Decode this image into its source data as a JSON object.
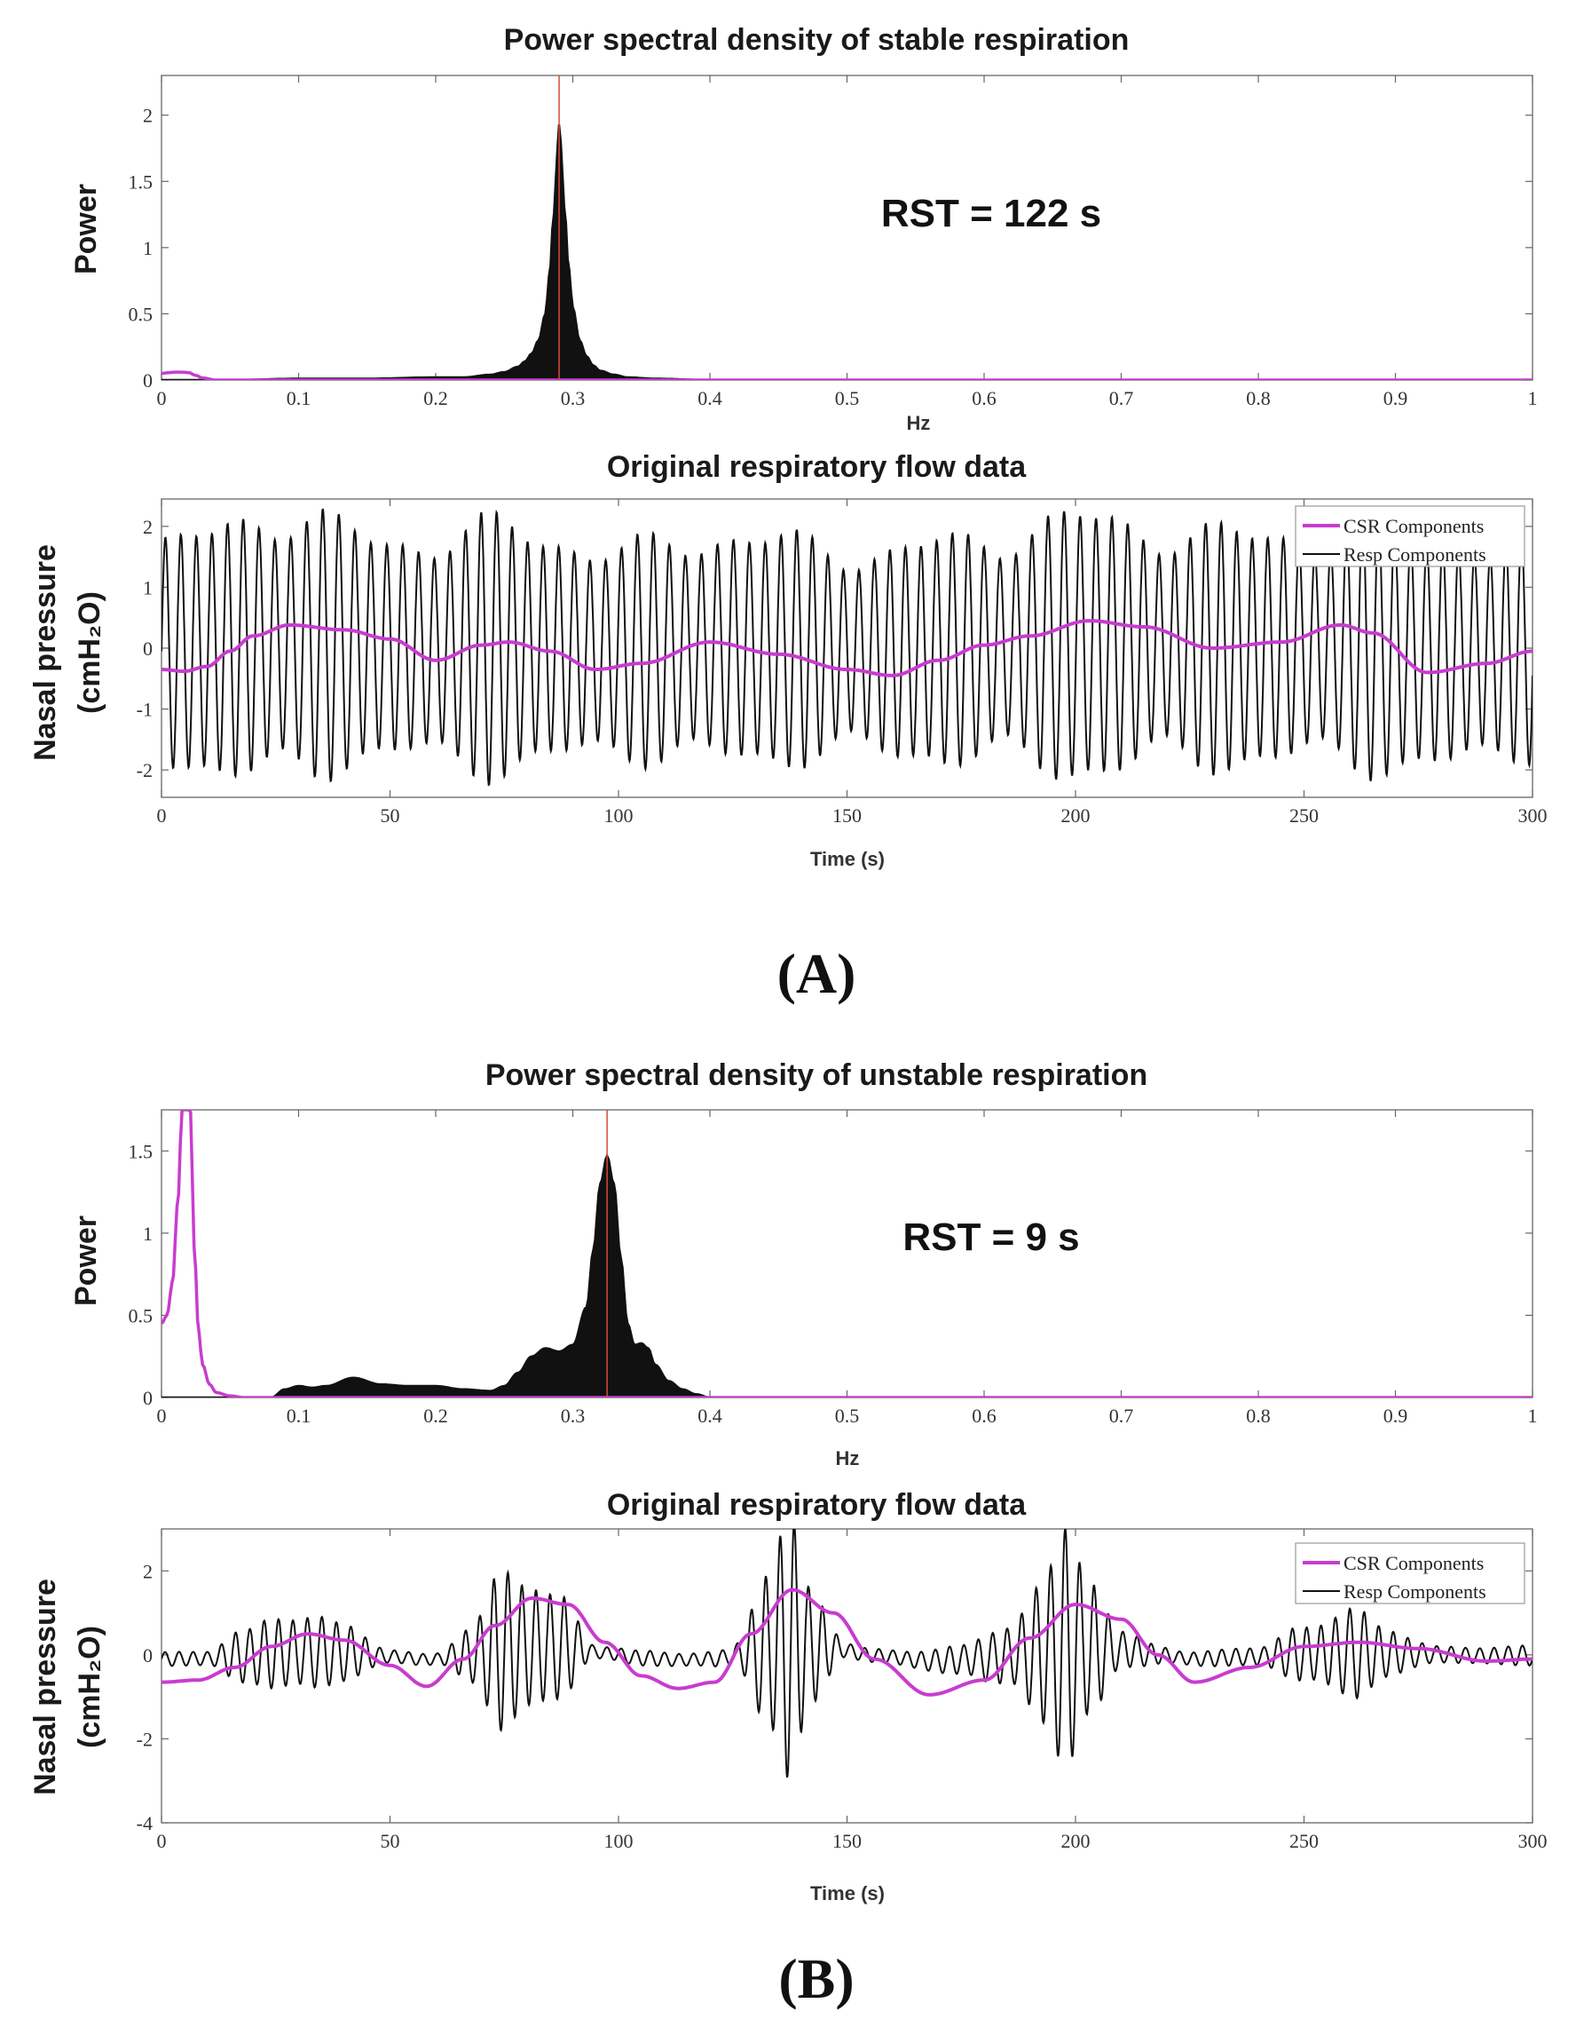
{
  "colors": {
    "csr": "#c83ccf",
    "resp": "#111111",
    "peak_marker": "#d94a3a",
    "axis": "#666666"
  },
  "panel_labels": [
    "(A)",
    "(B)"
  ],
  "chart_data": [
    {
      "id": "A_psd",
      "type": "area",
      "title": "Power spectral density of stable respiration",
      "xlabel": "Hz",
      "ylabel": "Power",
      "xlim": [
        0,
        1
      ],
      "ylim": [
        0,
        2.3
      ],
      "xticks": [
        0,
        0.1,
        0.2,
        0.3,
        0.4,
        0.5,
        0.6,
        0.7,
        0.8,
        0.9,
        1
      ],
      "xtick_labels": [
        "0",
        "0.1",
        "0.2",
        "0.3",
        "0.4",
        "0.5",
        "0.6",
        "0.7",
        "0.8",
        "0.9",
        "1"
      ],
      "yticks": [
        0,
        0.5,
        1,
        1.5,
        2
      ],
      "ytick_labels": [
        "0",
        "0.5",
        "1",
        "1.5",
        "2"
      ],
      "annotation": "RST = 122 s",
      "peak_hz": 0.29,
      "series": [
        {
          "name": "CSR Components",
          "x": [
            0,
            0.005,
            0.01,
            0.015,
            0.02,
            0.025,
            0.03,
            0.04,
            0.06,
            1.0
          ],
          "y": [
            0.05,
            0.055,
            0.06,
            0.06,
            0.055,
            0.035,
            0.015,
            0.0,
            0.0,
            0.0
          ]
        },
        {
          "name": "Resp Components",
          "x": [
            0,
            0.05,
            0.1,
            0.15,
            0.2,
            0.22,
            0.24,
            0.25,
            0.26,
            0.265,
            0.27,
            0.275,
            0.28,
            0.283,
            0.286,
            0.289,
            0.29,
            0.291,
            0.294,
            0.297,
            0.3,
            0.305,
            0.31,
            0.315,
            0.32,
            0.33,
            0.34,
            0.36,
            0.4,
            0.5,
            0.6,
            0.7,
            0.8,
            0.9,
            1.0
          ],
          "y": [
            0.0,
            0.0,
            0.01,
            0.01,
            0.02,
            0.02,
            0.04,
            0.06,
            0.1,
            0.14,
            0.2,
            0.3,
            0.5,
            0.8,
            1.25,
            1.75,
            1.93,
            1.8,
            1.3,
            0.85,
            0.55,
            0.3,
            0.18,
            0.11,
            0.07,
            0.04,
            0.02,
            0.01,
            0.0,
            0.0,
            0.0,
            0.0,
            0.0,
            0.0,
            0.0
          ]
        }
      ]
    },
    {
      "id": "A_flow",
      "type": "line",
      "title": "Original respiratory flow data",
      "xlabel": "Time (s)",
      "ylabel": "Nasal pressure",
      "ylabel2": "(cmH₂O)",
      "xlim": [
        0,
        300
      ],
      "ylim": [
        -2.45,
        2.45
      ],
      "xticks": [
        0,
        50,
        100,
        150,
        200,
        250,
        300
      ],
      "xtick_labels": [
        "0",
        "50",
        "100",
        "150",
        "200",
        "250",
        "300"
      ],
      "yticks": [
        -2,
        -1,
        0,
        1,
        2
      ],
      "ytick_labels": [
        "-2",
        "-1",
        "0",
        "1",
        "2"
      ],
      "legend": [
        "CSR Components",
        "Resp Components"
      ],
      "resp_freq_hz": 0.29,
      "resp_envelope": {
        "t": [
          0,
          25,
          50,
          75,
          100,
          125,
          150,
          175,
          200,
          225,
          250,
          275,
          300
        ],
        "amp": [
          1.7,
          2.1,
          1.7,
          1.9,
          1.6,
          1.8,
          1.6,
          1.7,
          2.0,
          1.8,
          1.8,
          1.9,
          1.6
        ]
      },
      "csr_series": {
        "name": "CSR Components",
        "x": [
          0,
          5,
          10,
          15,
          20,
          28,
          40,
          50,
          60,
          70,
          76,
          85,
          95,
          105,
          120,
          135,
          150,
          160,
          170,
          180,
          190,
          203,
          215,
          230,
          245,
          258,
          265,
          277,
          290,
          300
        ],
        "y": [
          -0.35,
          -0.38,
          -0.3,
          -0.05,
          0.2,
          0.38,
          0.3,
          0.15,
          -0.2,
          0.05,
          0.1,
          -0.05,
          -0.35,
          -0.25,
          0.1,
          -0.1,
          -0.35,
          -0.45,
          -0.2,
          0.05,
          0.2,
          0.45,
          0.35,
          0.0,
          0.1,
          0.38,
          0.25,
          -0.4,
          -0.25,
          -0.05
        ]
      }
    },
    {
      "id": "B_psd",
      "type": "area",
      "title": "Power spectral density of unstable respiration",
      "xlabel": "Hz",
      "ylabel": "Power",
      "xlim": [
        0,
        1
      ],
      "ylim": [
        0,
        1.75
      ],
      "xticks": [
        0,
        0.1,
        0.2,
        0.3,
        0.4,
        0.5,
        0.6,
        0.7,
        0.8,
        0.9,
        1
      ],
      "xtick_labels": [
        "0",
        "0.1",
        "0.2",
        "0.3",
        "0.4",
        "0.5",
        "0.6",
        "0.7",
        "0.8",
        "0.9",
        "1"
      ],
      "yticks": [
        0,
        0.5,
        1,
        1.5
      ],
      "ytick_labels": [
        "0",
        "0.5",
        "1",
        "1.5"
      ],
      "annotation": "RST = 9 s",
      "peak_hz": 0.325,
      "series": [
        {
          "name": "CSR Components",
          "x": [
            0,
            0.004,
            0.008,
            0.012,
            0.015,
            0.018,
            0.021,
            0.024,
            0.027,
            0.03,
            0.035,
            0.04,
            0.05,
            0.06,
            0.08,
            1.0
          ],
          "y": [
            0.45,
            0.5,
            0.7,
            1.2,
            1.75,
            1.75,
            1.75,
            0.9,
            0.4,
            0.2,
            0.08,
            0.03,
            0.01,
            0.0,
            0.0,
            0.0
          ]
        },
        {
          "name": "Resp Components",
          "x": [
            0,
            0.05,
            0.08,
            0.09,
            0.1,
            0.11,
            0.12,
            0.14,
            0.16,
            0.18,
            0.2,
            0.22,
            0.24,
            0.25,
            0.26,
            0.27,
            0.28,
            0.29,
            0.3,
            0.31,
            0.315,
            0.32,
            0.325,
            0.33,
            0.335,
            0.34,
            0.345,
            0.35,
            0.355,
            0.36,
            0.37,
            0.38,
            0.39,
            0.4,
            0.5,
            0.6,
            0.7,
            0.8,
            0.9,
            1.0
          ],
          "y": [
            0.0,
            0.0,
            0.0,
            0.05,
            0.07,
            0.06,
            0.07,
            0.12,
            0.08,
            0.07,
            0.07,
            0.05,
            0.04,
            0.07,
            0.15,
            0.25,
            0.3,
            0.28,
            0.32,
            0.55,
            0.9,
            1.3,
            1.47,
            1.3,
            0.85,
            0.45,
            0.32,
            0.33,
            0.3,
            0.2,
            0.1,
            0.05,
            0.02,
            0.0,
            0.0,
            0.0,
            0.0,
            0.0,
            0.0,
            0.0
          ]
        }
      ]
    },
    {
      "id": "B_flow",
      "type": "line",
      "title": "Original respiratory flow data",
      "xlabel": "Time (s)",
      "ylabel": "Nasal pressure",
      "ylabel2": "(cmH₂O)",
      "xlim": [
        0,
        300
      ],
      "ylim": [
        -4,
        3
      ],
      "xticks": [
        0,
        50,
        100,
        150,
        200,
        250,
        300
      ],
      "xtick_labels": [
        "0",
        "50",
        "100",
        "150",
        "200",
        "250",
        "300"
      ],
      "yticks": [
        -4,
        -2,
        0,
        2
      ],
      "ytick_labels": [
        "-4",
        "-2",
        "0",
        "2"
      ],
      "legend": [
        "CSR Components",
        "Resp Components"
      ],
      "resp_freq_hz": 0.32,
      "resp_envelope": {
        "t": [
          0,
          10,
          18,
          25,
          32,
          40,
          50,
          60,
          68,
          75,
          80,
          87,
          95,
          110,
          125,
          133,
          137,
          142,
          150,
          160,
          175,
          185,
          193,
          198,
          203,
          210,
          225,
          240,
          250,
          260,
          268,
          280,
          300
        ],
        "amp": [
          0.15,
          0.15,
          0.6,
          1.0,
          0.8,
          0.6,
          0.15,
          0.15,
          0.6,
          1.7,
          1.5,
          1.3,
          0.15,
          0.15,
          0.2,
          1.8,
          2.8,
          1.2,
          0.2,
          0.15,
          0.3,
          0.8,
          1.6,
          2.6,
          1.5,
          0.4,
          0.15,
          0.2,
          0.7,
          1.0,
          0.5,
          0.2,
          0.2
        ]
      },
      "csr_series": {
        "name": "CSR Components",
        "x": [
          0,
          8,
          16,
          24,
          32,
          40,
          50,
          58,
          66,
          73,
          81,
          89,
          97,
          105,
          113,
          121,
          129,
          138,
          147,
          156,
          168,
          180,
          190,
          200,
          210,
          218,
          226,
          238,
          250,
          262,
          275,
          290,
          300
        ],
        "y": [
          -0.65,
          -0.6,
          -0.3,
          0.2,
          0.5,
          0.35,
          -0.25,
          -0.75,
          -0.1,
          0.7,
          1.35,
          1.2,
          0.3,
          -0.5,
          -0.8,
          -0.65,
          0.5,
          1.55,
          1.0,
          -0.1,
          -0.95,
          -0.6,
          0.4,
          1.2,
          0.85,
          0.0,
          -0.65,
          -0.3,
          0.2,
          0.3,
          0.15,
          -0.15,
          -0.1
        ]
      }
    }
  ]
}
